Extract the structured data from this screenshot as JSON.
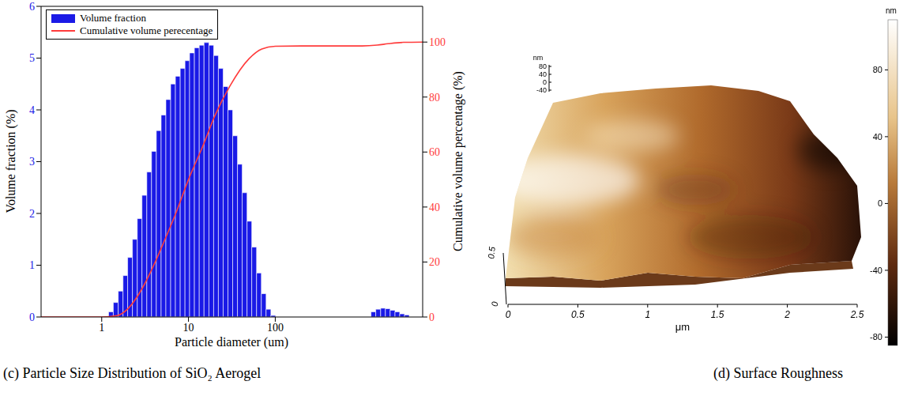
{
  "chart_data": [
    {
      "type": "histogram",
      "title": "(c) Particle Size Distribution of SiO₂ Aerogel",
      "xlabel": "Particle diameter (um)",
      "ylabel": "Volume fraction (%)",
      "y2label": "Cumulative volume percentage (%)",
      "log": "x",
      "xlim": [
        0.2,
        5000
      ],
      "xticks": [
        1,
        10,
        100
      ],
      "ylim": [
        0,
        6
      ],
      "yticks": [
        0,
        1,
        2,
        3,
        4,
        5,
        6
      ],
      "y2lim": [
        0,
        113
      ],
      "y2ticks": [
        0,
        20,
        40,
        60,
        80,
        100
      ],
      "grid": false,
      "legend": "upper left",
      "series": [
        {
          "name": "Volume fraction",
          "type": "bar",
          "color": "#1a1ae6",
          "bins": [
            1.2,
            1.36,
            1.55,
            1.76,
            1.99,
            2.26,
            2.57,
            2.91,
            3.31,
            3.75,
            4.26,
            4.84,
            5.49,
            6.23,
            7.07,
            8.03,
            9.11,
            10.3,
            11.7,
            13.3,
            15.1,
            17.2,
            19.5,
            22.1,
            25.1,
            28.5,
            32.3,
            36.7,
            41.6,
            47.3,
            53.6,
            60.9,
            69.1,
            78.4,
            89.0,
            101,
            115,
            130,
            148,
            168,
            190,
            216,
            245,
            278,
            316,
            358,
            407,
            462,
            524,
            595,
            675,
            766,
            870,
            987,
            1120,
            1270,
            1440,
            1640,
            1860,
            2110,
            2400,
            2720,
            3090,
            3500
          ],
          "values": [
            0.1,
            0.28,
            0.5,
            0.8,
            1.15,
            1.5,
            1.9,
            2.35,
            2.8,
            3.2,
            3.6,
            3.9,
            4.2,
            4.5,
            4.65,
            4.8,
            4.95,
            5.1,
            5.2,
            5.25,
            5.3,
            5.25,
            5.05,
            4.8,
            4.45,
            4,
            3.5,
            2.95,
            2.4,
            1.85,
            1.35,
            0.85,
            0.45,
            0.15,
            0.03,
            0,
            0,
            0,
            0,
            0,
            0,
            0,
            0,
            0,
            0,
            0,
            0,
            0,
            0,
            0,
            0,
            0,
            0,
            0,
            0,
            0.1,
            0.15,
            0.17,
            0.16,
            0.13,
            0.1,
            0.06,
            0.04
          ]
        },
        {
          "name": "Cumulative volume perecentage",
          "type": "line",
          "axis": "y2",
          "color": "#ff3b3b",
          "x": [
            0.2,
            1,
            1.5,
            2,
            3,
            4,
            5,
            7,
            10,
            15,
            20,
            30,
            50,
            70,
            100,
            200,
            1000,
            1500,
            2000,
            3000,
            5000
          ],
          "values": [
            0,
            0,
            0.5,
            3,
            11,
            19,
            26,
            37,
            50,
            63,
            73,
            84,
            94,
            97.5,
            98.5,
            98.6,
            98.6,
            98.9,
            99.4,
            99.9,
            100
          ]
        }
      ]
    },
    {
      "type": "surface",
      "title": "(d) Surface Roughness",
      "xlabel": "μm",
      "xlim": [
        0,
        2.5
      ],
      "xticks": [
        0,
        0.5,
        1,
        1.5,
        2,
        2.5
      ],
      "yticks": [
        0,
        0.5
      ],
      "zlabel": "nm",
      "zticks": [
        80,
        40,
        0,
        -40
      ],
      "colorbar": {
        "label": "nm",
        "range": [
          -85,
          110
        ],
        "ticks": [
          80,
          40,
          0,
          -40,
          -80
        ]
      }
    }
  ]
}
